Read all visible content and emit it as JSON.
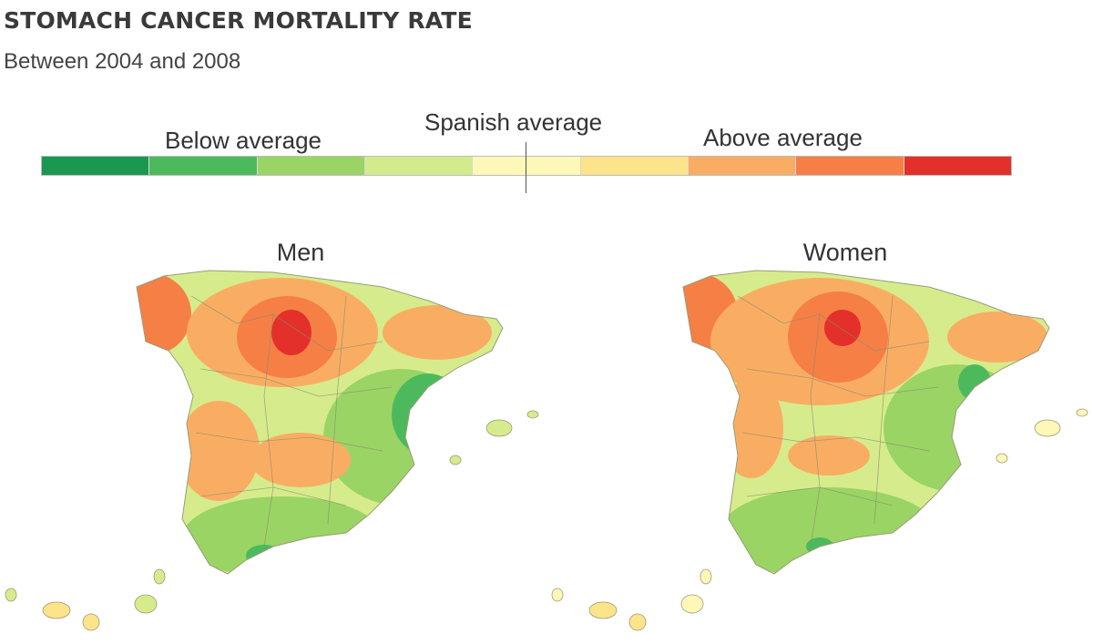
{
  "title": "STOMACH CANCER MORTALITY RATE",
  "subtitle": "Between 2004 and 2008",
  "legend": {
    "below_label": "Below average",
    "center_label": "Spanish average",
    "above_label": "Above average",
    "colors": [
      "#1a9850",
      "#4cba5c",
      "#9ad465",
      "#d3ec8b",
      "#fdf8b8",
      "#fde38a",
      "#f9ad63",
      "#f67f46",
      "#e3302a"
    ]
  },
  "maps": {
    "men": {
      "label": "Men",
      "regions": [
        "nw-high",
        "north-central-high",
        "center-medium-high",
        "east-low",
        "south-low"
      ]
    },
    "women": {
      "label": "Women",
      "regions": [
        "nw-high",
        "north-central-high",
        "center-medium",
        "east-low",
        "south-low"
      ]
    }
  }
}
